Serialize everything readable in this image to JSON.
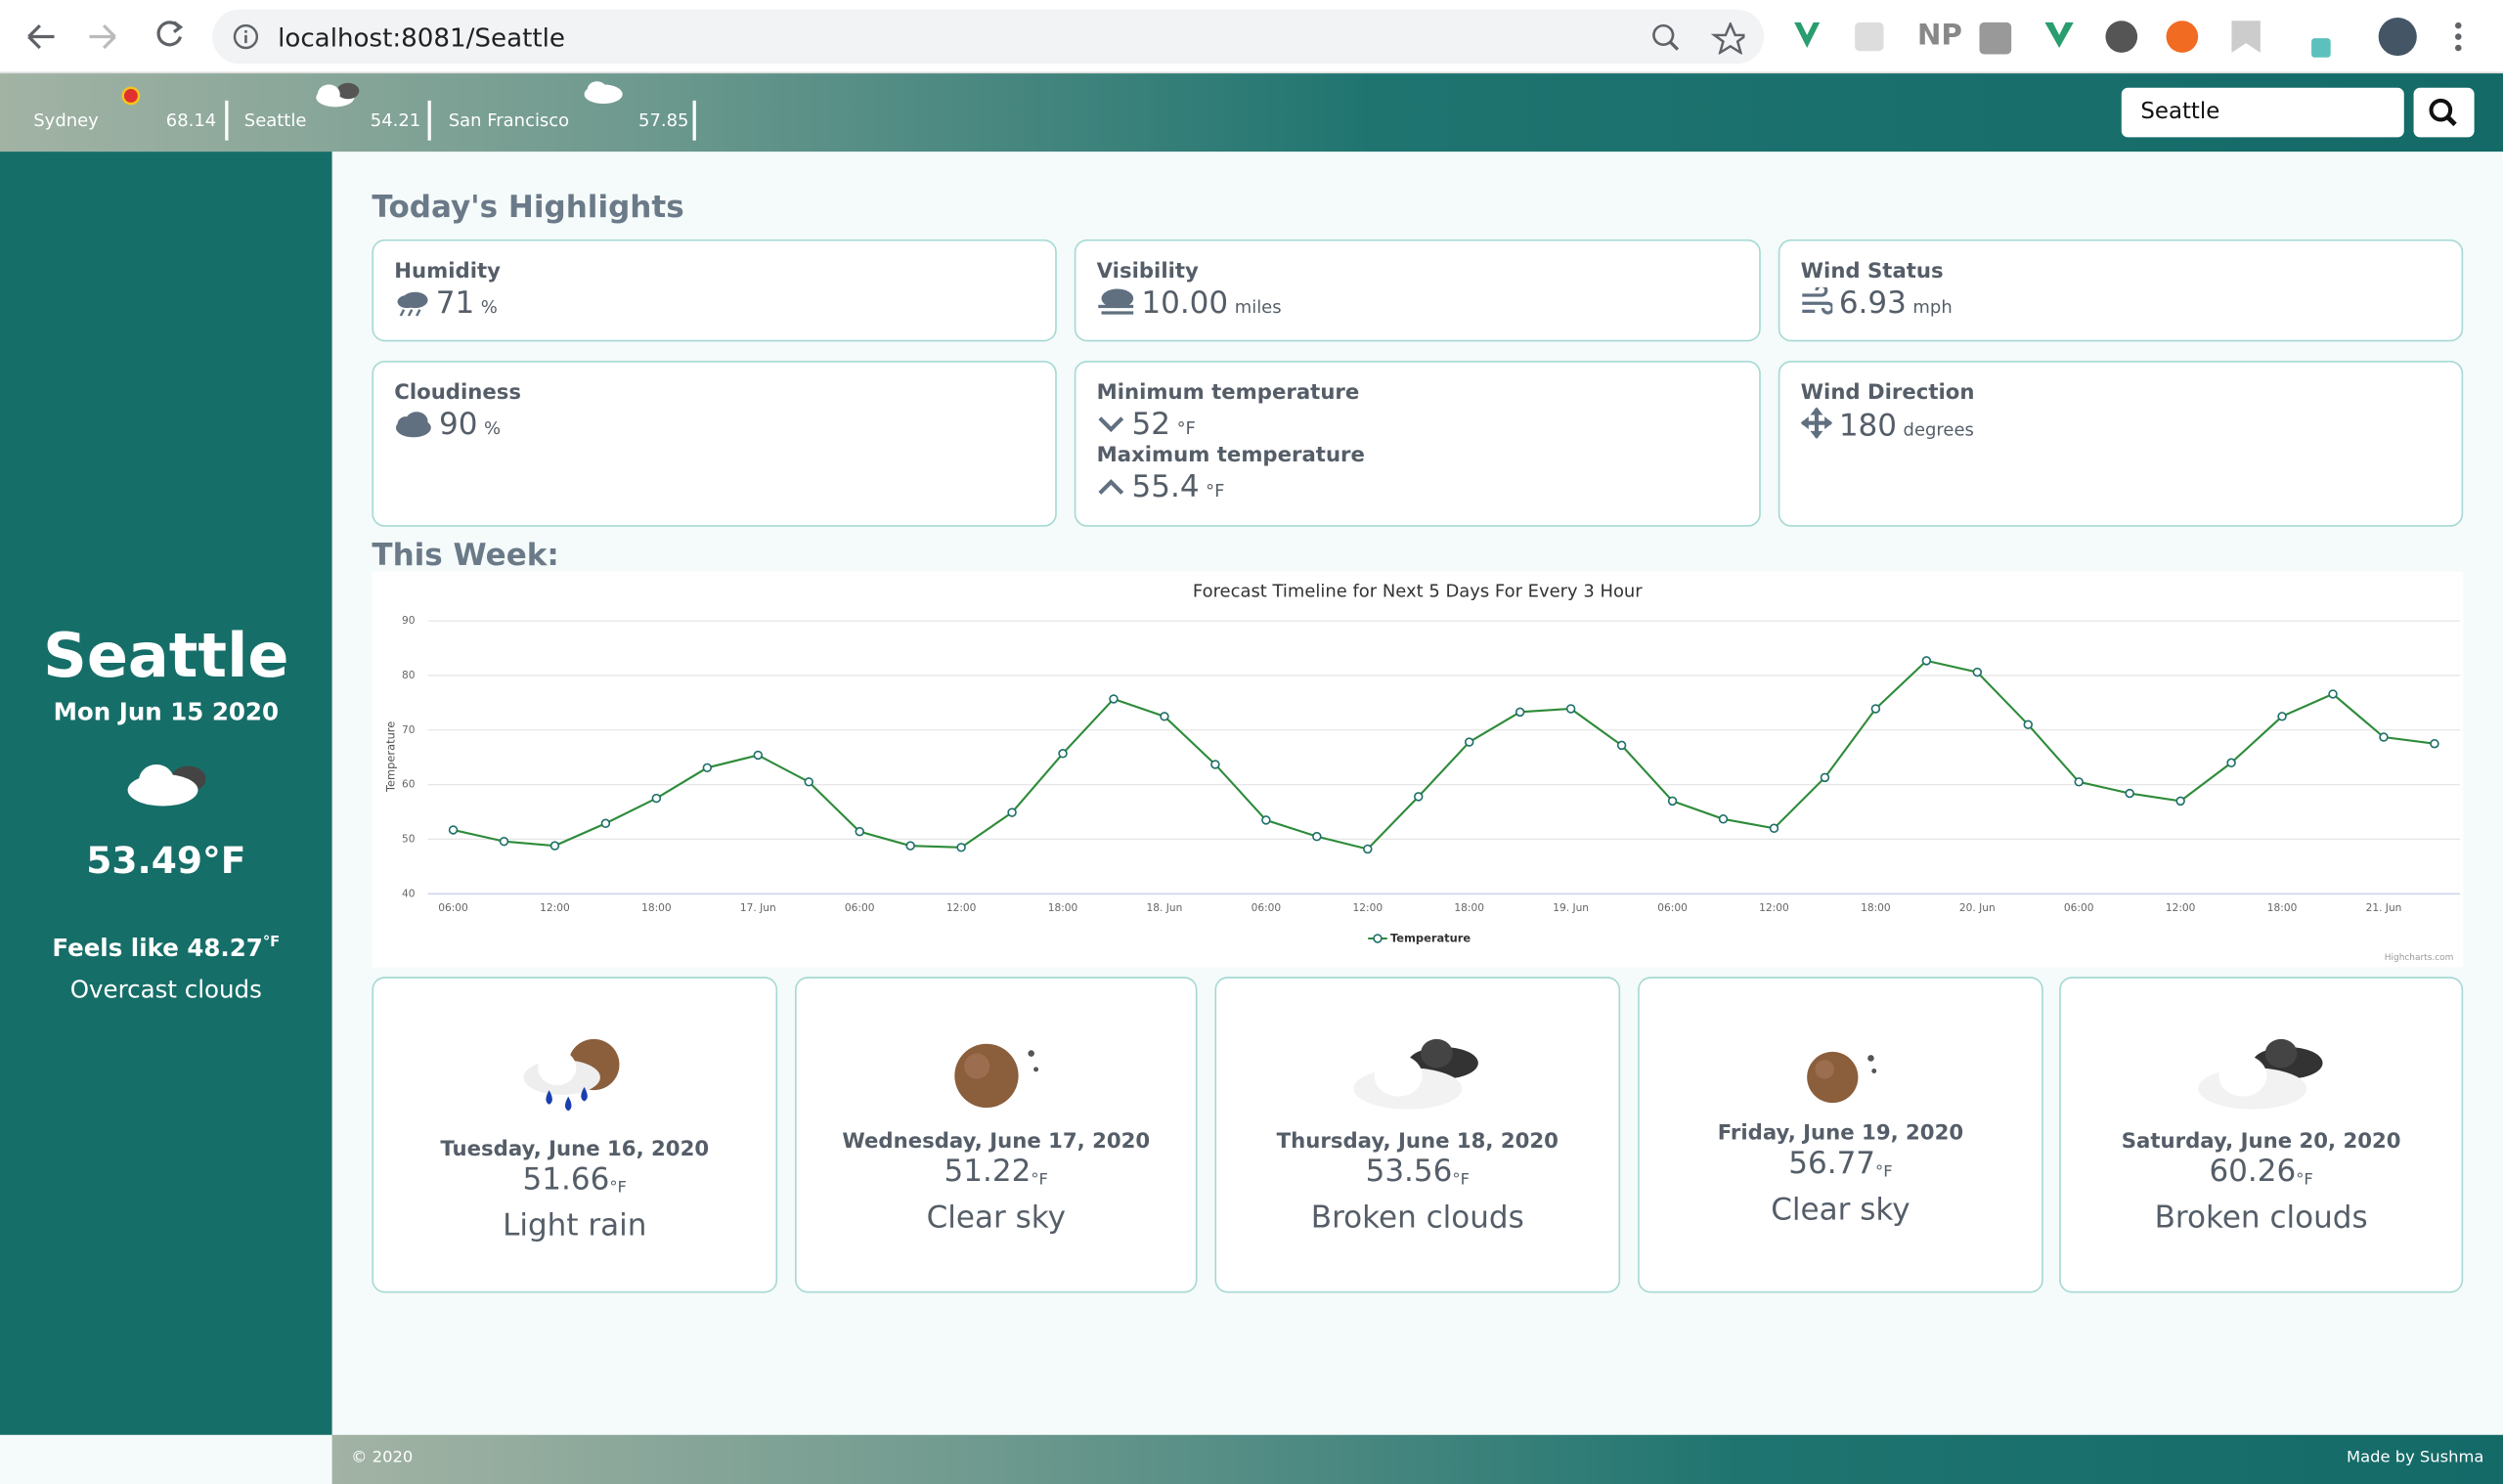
{
  "browser": {
    "url": "localhost:8081/Seattle",
    "extension_label": "NP"
  },
  "city_strip": [
    {
      "name": "Sydney",
      "temp": "68.14"
    },
    {
      "name": "Seattle",
      "temp": "54.21"
    },
    {
      "name": "San Francisco",
      "temp": "57.85"
    }
  ],
  "search": {
    "value": "Seattle"
  },
  "current": {
    "city": "Seattle",
    "date": "Mon Jun 15 2020",
    "temp": "53.49°F",
    "feels_like": "Feels like 48.27",
    "feels_like_unit": "°F",
    "description": "Overcast clouds"
  },
  "highlights": {
    "title": "Today's Highlights",
    "cards": [
      {
        "items": [
          {
            "label": "Humidity",
            "value": "71",
            "unit": "%"
          }
        ]
      },
      {
        "items": [
          {
            "label": "Visibility",
            "value": "10.00",
            "unit": "miles"
          }
        ]
      },
      {
        "items": [
          {
            "label": "Wind Status",
            "value": "6.93",
            "unit": "mph"
          }
        ]
      },
      {
        "items": [
          {
            "label": "Cloudiness",
            "value": "90",
            "unit": "%"
          }
        ]
      },
      {
        "items": [
          {
            "label": "Minimum temperature",
            "value": "52",
            "unit": "°F"
          },
          {
            "label": "Maximum temperature",
            "value": "55.4",
            "unit": "°F"
          }
        ]
      },
      {
        "items": [
          {
            "label": "Wind Direction",
            "value": "180",
            "unit": "degrees"
          }
        ]
      }
    ]
  },
  "week_title": "This Week:",
  "chart_data": {
    "type": "line",
    "title": "Forecast Timeline for Next 5 Days For Every 3 Hour",
    "y_label": "Temperature",
    "categories": [
      "06:00",
      null,
      "12:00",
      null,
      "18:00",
      null,
      "17. Jun",
      null,
      "06:00",
      null,
      "12:00",
      null,
      "18:00",
      null,
      "18. Jun",
      null,
      "06:00",
      null,
      "12:00",
      null,
      "18:00",
      null,
      "19. Jun",
      null,
      "06:00",
      null,
      "12:00",
      null,
      "18:00",
      null,
      "20. Jun",
      null,
      "06:00",
      null,
      "12:00",
      null,
      "18:00",
      null,
      "21. Jun",
      null
    ],
    "series": [
      {
        "name": "Temperature",
        "color": "#2e8b3a",
        "values": [
          51.7,
          49.6,
          48.8,
          52.9,
          57.5,
          63.1,
          65.4,
          60.5,
          51.4,
          48.8,
          48.5,
          54.9,
          65.7,
          75.7,
          72.5,
          63.7,
          53.5,
          50.5,
          48.2,
          57.8,
          67.8,
          73.3,
          73.9,
          67.2,
          57.0,
          53.7,
          52.0,
          61.3,
          73.9,
          82.7,
          80.6,
          71.0,
          60.5,
          58.4,
          57.0,
          64.0,
          72.5,
          76.6,
          68.7,
          67.5
        ]
      }
    ],
    "ylim": [
      40,
      90
    ],
    "yticks": [
      40,
      50,
      60,
      70,
      80,
      90
    ],
    "grid": true,
    "legend": "bottom",
    "credits": "Highcharts.com"
  },
  "forecast": [
    {
      "date": "Tuesday, June 16, 2020",
      "temp": "51.66",
      "unit": "°F",
      "description": "Light rain"
    },
    {
      "date": "Wednesday, June 17, 2020",
      "temp": "51.22",
      "unit": "°F",
      "description": "Clear sky"
    },
    {
      "date": "Thursday, June 18, 2020",
      "temp": "53.56",
      "unit": "°F",
      "description": "Broken clouds"
    },
    {
      "date": "Friday, June 19, 2020",
      "temp": "56.77",
      "unit": "°F",
      "description": "Clear sky"
    },
    {
      "date": "Saturday, June 20, 2020",
      "temp": "60.26",
      "unit": "°F",
      "description": "Broken clouds"
    }
  ],
  "footer": {
    "copyright": "© 2020",
    "credit": "Made by Sushma"
  }
}
